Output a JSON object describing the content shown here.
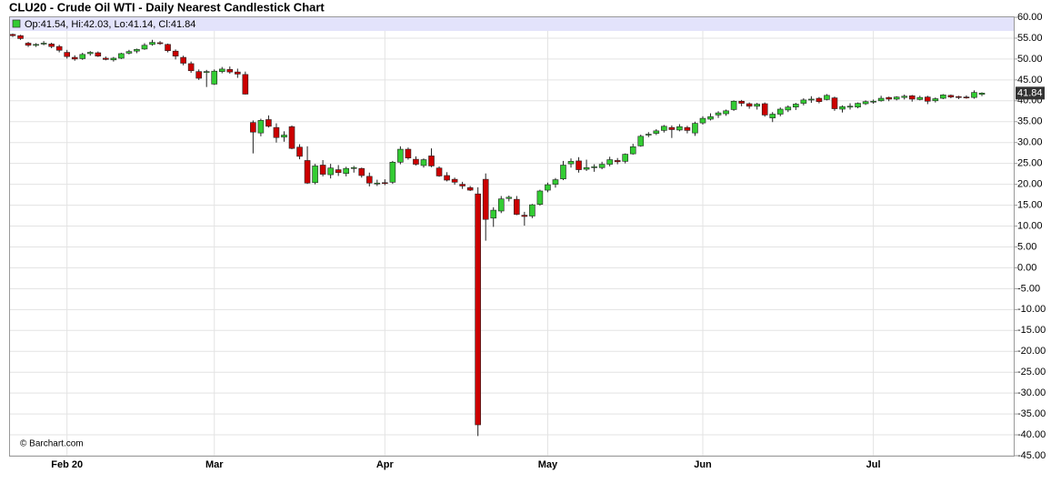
{
  "chart_data": {
    "type": "candlestick",
    "title": "CLU20 - Crude Oil WTI - Daily Nearest Candlestick Chart",
    "legend": "Op:41.54, Hi:42.03, Lo:41.14, Cl:41.84",
    "credit": "© Barchart.com",
    "up_color": "#33cc33",
    "down_color": "#cc0000",
    "grid": true,
    "ylim": [
      -45,
      60
    ],
    "yticks": [
      {
        "value": -45,
        "label": "-45.00"
      },
      {
        "value": -40,
        "label": "-40.00"
      },
      {
        "value": -35,
        "label": "-35.00"
      },
      {
        "value": -30,
        "label": "-30.00"
      },
      {
        "value": -25,
        "label": "-25.00"
      },
      {
        "value": -20,
        "label": "-20.00"
      },
      {
        "value": -15,
        "label": "-15.00"
      },
      {
        "value": -10,
        "label": "-10.00"
      },
      {
        "value": -5,
        "label": "-5.00"
      },
      {
        "value": 0,
        "label": "0.00"
      },
      {
        "value": 5,
        "label": "5.00"
      },
      {
        "value": 10,
        "label": "10.00"
      },
      {
        "value": 15,
        "label": "15.00"
      },
      {
        "value": 20,
        "label": "20.00"
      },
      {
        "value": 25,
        "label": "25.00"
      },
      {
        "value": 30,
        "label": "30.00"
      },
      {
        "value": 35,
        "label": "35.00"
      },
      {
        "value": 40,
        "label": "40.00"
      },
      {
        "value": 45,
        "label": "45.00"
      },
      {
        "value": 50,
        "label": "50.00"
      },
      {
        "value": 55,
        "label": "55.00"
      },
      {
        "value": 60,
        "label": "60.00"
      }
    ],
    "categories": [
      null,
      null,
      null,
      null,
      null,
      null,
      null,
      "Feb 20",
      null,
      null,
      null,
      null,
      null,
      null,
      null,
      null,
      null,
      null,
      null,
      null,
      null,
      null,
      null,
      null,
      null,
      null,
      "Mar",
      null,
      null,
      null,
      null,
      null,
      null,
      null,
      null,
      null,
      null,
      null,
      null,
      null,
      null,
      null,
      null,
      null,
      null,
      null,
      null,
      null,
      "Apr",
      null,
      null,
      null,
      null,
      null,
      null,
      null,
      null,
      null,
      null,
      null,
      null,
      null,
      null,
      null,
      null,
      null,
      null,
      null,
      null,
      "May",
      null,
      null,
      null,
      null,
      null,
      null,
      null,
      null,
      null,
      null,
      null,
      null,
      null,
      null,
      null,
      null,
      null,
      null,
      null,
      "Jun",
      null,
      null,
      null,
      null,
      null,
      null,
      null,
      null,
      null,
      null,
      null,
      null,
      null,
      null,
      null,
      null,
      null,
      null,
      null,
      null,
      null,
      "Jul",
      null,
      null,
      null,
      null,
      null,
      null,
      null,
      null,
      null,
      null,
      null,
      null,
      null,
      null
    ],
    "open": [
      55.9,
      55.6,
      53.8,
      53.3,
      53.6,
      53.6,
      53.0,
      51.6,
      50.4,
      50.1,
      51.3,
      51.5,
      50.2,
      49.8,
      50.2,
      51.4,
      51.9,
      52.4,
      53.5,
      53.9,
      53.5,
      51.9,
      50.4,
      48.9,
      47.0,
      46.9,
      44.0,
      47.0,
      47.5,
      46.9,
      46.3,
      34.8,
      32.3,
      35.5,
      33.6,
      31.3,
      33.8,
      28.9,
      25.7,
      20.4,
      24.6,
      22.3,
      23.5,
      22.6,
      23.9,
      23.8,
      21.9,
      20.1,
      20.4,
      20.5,
      25.3,
      28.4,
      26.0,
      24.5,
      26.8,
      23.9,
      22.1,
      21.2,
      20.0,
      19.2,
      17.7,
      21.2,
      11.9,
      13.6,
      16.6,
      16.4,
      12.6,
      12.4,
      15.2,
      18.6,
      20.0,
      21.3,
      24.9,
      25.6,
      23.6,
      24.1,
      24.0,
      24.8,
      25.7,
      25.5,
      27.3,
      29.2,
      31.9,
      32.2,
      32.9,
      33.6,
      33.0,
      33.6,
      32.3,
      34.7,
      35.6,
      36.6,
      36.9,
      37.9,
      39.9,
      39.3,
      38.7,
      39.3,
      35.9,
      36.8,
      37.8,
      38.5,
      39.4,
      40.2,
      40.6,
      40.3,
      40.7,
      38.0,
      38.6,
      38.5,
      39.3,
      39.8,
      40.0,
      40.8,
      40.4,
      40.8,
      41.2,
      40.3,
      40.9,
      40.0,
      40.6,
      41.3,
      41.0,
      40.9,
      40.8,
      41.54
    ],
    "high": [
      56.1,
      55.8,
      54.1,
      53.8,
      54.3,
      53.9,
      53.4,
      52.2,
      50.9,
      51.5,
      51.9,
      51.8,
      50.6,
      50.5,
      51.5,
      52.2,
      52.5,
      53.8,
      54.6,
      54.3,
      53.7,
      52.3,
      50.8,
      49.4,
      47.5,
      47.4,
      47.5,
      48.1,
      48.2,
      47.7,
      47.0,
      35.3,
      35.7,
      36.5,
      34.6,
      32.7,
      34.1,
      29.6,
      29.1,
      24.9,
      25.8,
      24.9,
      24.6,
      24.2,
      24.4,
      24.0,
      22.8,
      21.1,
      21.2,
      25.6,
      29.1,
      28.8,
      26.7,
      26.2,
      28.6,
      24.3,
      22.9,
      21.6,
      20.6,
      19.6,
      19.3,
      22.6,
      14.5,
      17.2,
      17.3,
      17.2,
      13.4,
      15.3,
      18.7,
      20.4,
      21.5,
      25.6,
      26.2,
      26.5,
      25.9,
      24.8,
      25.4,
      26.6,
      26.3,
      27.4,
      29.7,
      31.9,
      32.5,
      33.2,
      34.2,
      34.1,
      34.4,
      34.0,
      35.0,
      36.3,
      37.0,
      37.5,
      37.9,
      40.1,
      40.2,
      39.6,
      39.5,
      39.6,
      37.3,
      38.4,
      38.9,
      39.5,
      40.6,
      41.1,
      40.9,
      41.6,
      41.0,
      38.9,
      39.4,
      39.6,
      40.1,
      40.3,
      41.2,
      41.0,
      41.1,
      41.5,
      41.4,
      41.2,
      41.2,
      40.8,
      41.6,
      41.5,
      41.2,
      41.3,
      42.5,
      42.03
    ],
    "low": [
      55.3,
      54.6,
      52.9,
      52.9,
      53.3,
      52.6,
      51.6,
      50.1,
      49.6,
      49.8,
      50.8,
      50.5,
      49.7,
      49.4,
      50.0,
      51.1,
      51.4,
      52.2,
      53.2,
      53.4,
      51.6,
      49.9,
      48.5,
      46.7,
      45.0,
      43.3,
      43.8,
      46.6,
      46.5,
      45.5,
      41.5,
      27.4,
      31.5,
      33.6,
      30.0,
      30.2,
      28.4,
      26.0,
      20.1,
      20.0,
      21.9,
      21.4,
      22.0,
      21.9,
      22.8,
      21.6,
      19.5,
      19.6,
      19.8,
      20.1,
      24.8,
      25.9,
      24.5,
      24.0,
      24.1,
      21.8,
      20.7,
      19.9,
      18.9,
      18.4,
      -40.3,
      6.5,
      9.8,
      13.1,
      15.9,
      12.6,
      10.1,
      11.9,
      14.9,
      18.1,
      19.2,
      21.0,
      24.0,
      22.8,
      23.2,
      23.0,
      23.6,
      24.3,
      24.8,
      25.0,
      27.1,
      29.0,
      31.3,
      31.8,
      32.4,
      31.1,
      32.7,
      32.2,
      31.6,
      34.3,
      35.3,
      35.9,
      36.4,
      37.6,
      38.7,
      38.1,
      37.9,
      36.2,
      34.9,
      36.3,
      37.3,
      37.8,
      38.9,
      39.5,
      39.4,
      40.1,
      37.6,
      37.2,
      37.9,
      38.2,
      39.0,
      39.3,
      39.8,
      39.9,
      40.1,
      40.3,
      39.8,
      40.1,
      39.2,
      39.6,
      40.4,
      40.6,
      40.4,
      40.5,
      40.5,
      41.14
    ],
    "close": [
      55.6,
      54.9,
      53.3,
      53.5,
      53.8,
      53.0,
      52.1,
      50.6,
      50.0,
      51.1,
      51.6,
      50.7,
      49.9,
      50.2,
      51.3,
      51.8,
      52.3,
      53.3,
      54.0,
      53.7,
      52.0,
      50.7,
      49.0,
      47.2,
      45.4,
      47.0,
      47.1,
      47.6,
      46.9,
      46.4,
      41.6,
      32.5,
      35.3,
      33.9,
      31.2,
      31.8,
      28.6,
      26.7,
      20.3,
      24.4,
      22.4,
      23.9,
      22.8,
      23.8,
      24.0,
      22.1,
      20.3,
      20.3,
      20.3,
      25.3,
      28.4,
      26.3,
      24.8,
      25.9,
      24.4,
      22.0,
      21.0,
      20.5,
      19.6,
      18.6,
      -37.6,
      11.6,
      13.8,
      16.5,
      16.9,
      12.8,
      12.3,
      15.1,
      18.4,
      19.9,
      21.1,
      24.6,
      25.5,
      23.5,
      24.0,
      24.2,
      24.8,
      25.9,
      25.4,
      27.2,
      29.0,
      31.5,
      32.0,
      32.8,
      33.9,
      33.1,
      33.8,
      32.9,
      34.6,
      35.8,
      36.2,
      37.1,
      37.6,
      39.9,
      39.4,
      38.7,
      39.2,
      36.6,
      36.8,
      38.0,
      38.5,
      39.2,
      40.2,
      40.4,
      39.8,
      41.3,
      38.1,
      38.6,
      38.7,
      39.4,
      39.8,
      39.9,
      40.6,
      40.4,
      40.9,
      41.1,
      40.4,
      40.8,
      39.9,
      40.5,
      41.4,
      40.9,
      40.8,
      40.7,
      42.0,
      41.84
    ]
  }
}
